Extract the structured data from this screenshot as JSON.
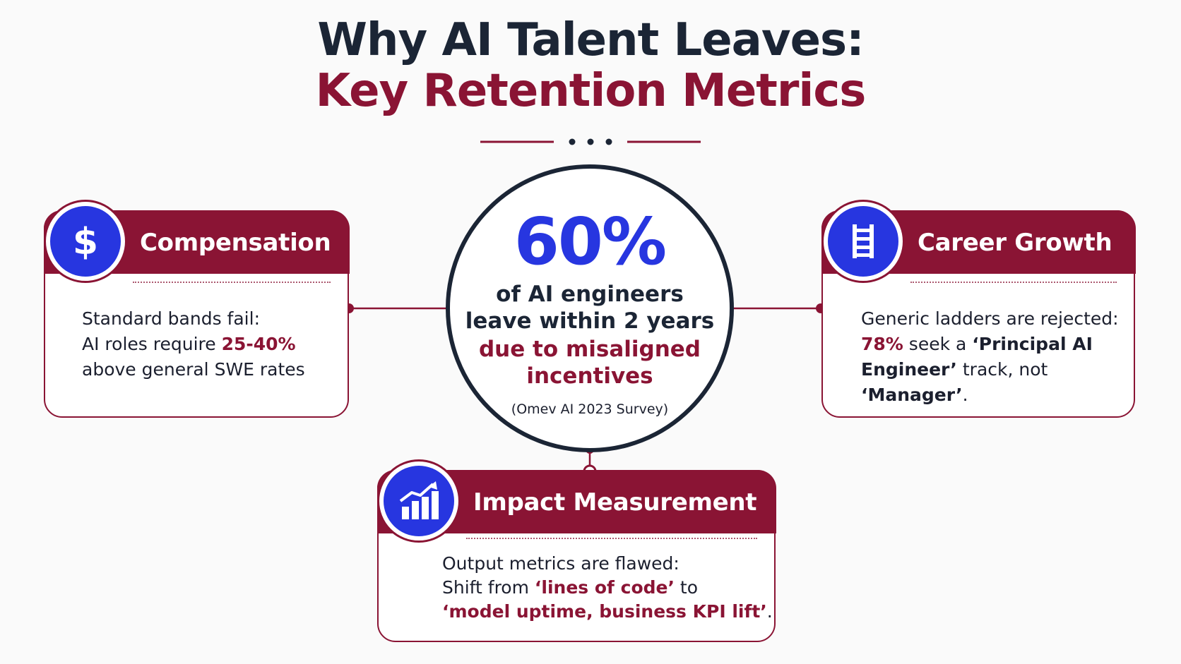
{
  "title": {
    "line1": "Why AI Talent Leaves:",
    "line2": "Key Retention Metrics"
  },
  "colors": {
    "primary": "#8a1434",
    "dark": "#1b2535",
    "accent_blue": "#2736e0",
    "background": "#fafafa"
  },
  "center": {
    "value": "60%",
    "line1": "of AI engineers",
    "line2": "leave within 2 years",
    "line3": "due to misaligned",
    "line4": "incentives",
    "source": "(Omev AI 2023 Survey)"
  },
  "cards": {
    "compensation": {
      "icon": "dollar-icon",
      "title": "Compensation",
      "body_line1": "Standard bands fail:",
      "body_line2_pre": "AI roles require ",
      "body_line2_hl": "25-40%",
      "body_line3": "above general SWE rates"
    },
    "career": {
      "icon": "ladder-icon",
      "title": "Career Growth",
      "body_line1": "Generic ladders are rejected:",
      "body_line2_hl": "78%",
      "body_line2_mid": " seek a ",
      "body_line2_bold": "‘Principal AI",
      "body_line3_bold": "Engineer’",
      "body_line3_post": " track, not",
      "body_line4_bold": "‘Manager’",
      "body_line4_post": "."
    },
    "impact": {
      "icon": "bar-chart-trend-icon",
      "title": "Impact Measurement",
      "body_line1": "Output metrics are flawed:",
      "body_line2_pre": "Shift from ",
      "body_line2_hl": "‘lines of code’",
      "body_line2_post": " to",
      "body_line3_hl": "‘model uptime, business KPI lift’",
      "body_line3_post": "."
    }
  }
}
